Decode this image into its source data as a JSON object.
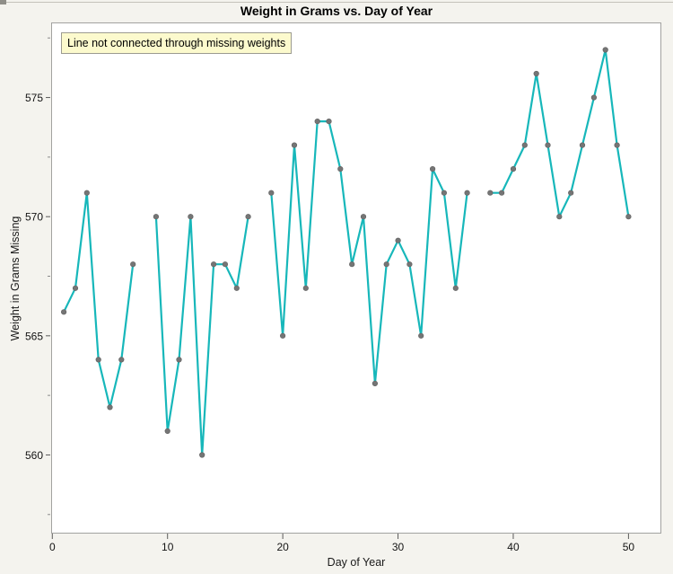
{
  "window": {
    "title": "Weight in Grams vs. Day of Year"
  },
  "chart_data": {
    "type": "line",
    "title": "Weight in Grams vs. Day of Year",
    "xlabel": "Day of Year",
    "ylabel": "Weight in Grams Missing",
    "annotation": "Line not connected through missing weights",
    "x_ticks": [
      0,
      10,
      20,
      30,
      40,
      50
    ],
    "y_ticks": [
      560,
      565,
      570,
      575
    ],
    "y_minor_ticks": [
      557.5,
      562.5,
      567.5,
      572.5,
      577.5
    ],
    "xlim": [
      -0.1,
      52.85
    ],
    "ylim": [
      556.7,
      578.15
    ],
    "grid": false,
    "legend": "none",
    "line_color": "#17b7ba",
    "marker_color": "#757575",
    "missing_days": [
      8,
      18,
      37
    ],
    "segments": [
      {
        "points": [
          [
            1,
            566
          ],
          [
            2,
            567
          ],
          [
            3,
            571
          ],
          [
            4,
            564
          ],
          [
            5,
            562
          ],
          [
            6,
            564
          ],
          [
            7,
            568
          ]
        ]
      },
      {
        "points": [
          [
            9,
            570
          ],
          [
            10,
            561
          ],
          [
            11,
            564
          ],
          [
            12,
            570
          ],
          [
            13,
            560
          ],
          [
            14,
            568
          ],
          [
            15,
            568
          ],
          [
            16,
            567
          ],
          [
            17,
            570
          ]
        ]
      },
      {
        "points": [
          [
            19,
            571
          ],
          [
            20,
            565
          ],
          [
            21,
            573
          ],
          [
            22,
            567
          ],
          [
            23,
            574
          ],
          [
            24,
            574
          ],
          [
            25,
            572
          ],
          [
            26,
            568
          ],
          [
            27,
            570
          ],
          [
            28,
            563
          ],
          [
            29,
            568
          ],
          [
            30,
            569
          ],
          [
            31,
            568
          ],
          [
            32,
            565
          ],
          [
            33,
            572
          ],
          [
            34,
            571
          ],
          [
            35,
            567
          ],
          [
            36,
            571
          ]
        ]
      },
      {
        "points": [
          [
            38,
            571
          ],
          [
            39,
            571
          ],
          [
            40,
            572
          ],
          [
            41,
            573
          ],
          [
            42,
            576
          ],
          [
            43,
            573
          ],
          [
            44,
            570
          ],
          [
            45,
            571
          ],
          [
            46,
            573
          ],
          [
            47,
            575
          ],
          [
            48,
            577
          ],
          [
            49,
            573
          ],
          [
            50,
            570
          ]
        ]
      }
    ]
  }
}
